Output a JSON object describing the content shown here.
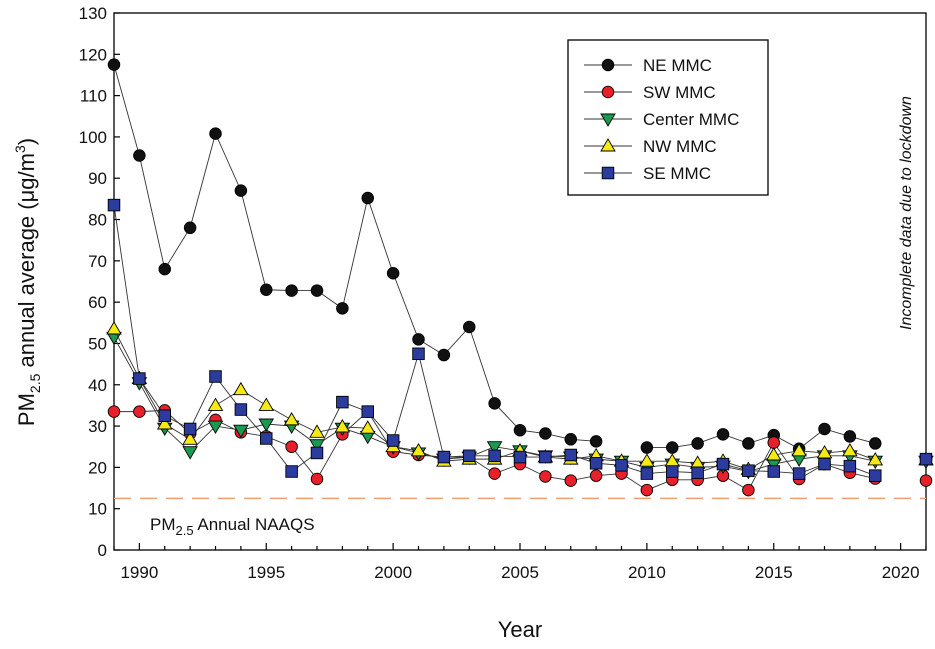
{
  "chart_data": {
    "type": "line",
    "title": "",
    "xlabel": "Year",
    "ylabel_prefix": "PM",
    "ylabel_sub": "2.5",
    "ylabel_mid": " annual average (μg/m",
    "ylabel_sup": "3",
    "ylabel_end": ")",
    "xlim": [
      1989,
      2021
    ],
    "ylim": [
      0,
      130
    ],
    "x_ticks": [
      1990,
      1995,
      2000,
      2005,
      2010,
      2015,
      2020
    ],
    "y_ticks": [
      0,
      10,
      20,
      30,
      40,
      50,
      60,
      70,
      80,
      90,
      100,
      110,
      120,
      130
    ],
    "legend_position": "top-right",
    "series": [
      {
        "name": "NE MMC",
        "marker": "circle",
        "color": "#111111",
        "points": [
          [
            1989,
            117.5
          ],
          [
            1990,
            95.5
          ],
          [
            1991,
            68
          ],
          [
            1992,
            78
          ],
          [
            1993,
            100.8
          ],
          [
            1994,
            87
          ],
          [
            1995,
            63
          ],
          [
            1996,
            62.8
          ],
          [
            1997,
            62.8
          ],
          [
            1998,
            58.5
          ],
          [
            1999,
            85.2
          ],
          [
            2000,
            67
          ],
          [
            2001,
            51
          ],
          [
            2002,
            47.2
          ],
          [
            2003,
            54
          ],
          [
            2004,
            35.5
          ],
          [
            2005,
            29
          ],
          [
            2006,
            28.2
          ],
          [
            2007,
            26.8
          ],
          [
            2008,
            26.3
          ],
          [
            2010,
            24.8
          ],
          [
            2011,
            24.8
          ],
          [
            2012,
            25.8
          ],
          [
            2013,
            28
          ],
          [
            2014,
            25.8
          ],
          [
            2015,
            27.8
          ],
          [
            2016,
            24.5
          ],
          [
            2017,
            29.3
          ],
          [
            2018,
            27.5
          ],
          [
            2019,
            25.8
          ],
          [
            2021,
            22
          ]
        ]
      },
      {
        "name": "SW MMC",
        "marker": "circle",
        "color": "#e8202a",
        "points": [
          [
            1989,
            33.5
          ],
          [
            1990,
            33.5
          ],
          [
            1991,
            33.8
          ],
          [
            1992,
            28.2
          ],
          [
            1993,
            31.5
          ],
          [
            1994,
            28.5
          ],
          [
            1995,
            27.5
          ],
          [
            1996,
            25
          ],
          [
            1997,
            17.2
          ],
          [
            1998,
            28
          ],
          [
            1999,
            33.5
          ],
          [
            2000,
            23.8
          ],
          [
            2001,
            23
          ],
          [
            2002,
            22.5
          ],
          [
            2003,
            22.5
          ],
          [
            2004,
            18.5
          ],
          [
            2005,
            20.8
          ],
          [
            2006,
            17.8
          ],
          [
            2007,
            16.8
          ],
          [
            2008,
            18
          ],
          [
            2009,
            18.5
          ],
          [
            2010,
            14.5
          ],
          [
            2011,
            17
          ],
          [
            2012,
            17
          ],
          [
            2013,
            18
          ],
          [
            2014,
            14.5
          ],
          [
            2015,
            26
          ],
          [
            2016,
            17.2
          ],
          [
            2017,
            20.8
          ],
          [
            2018,
            18.7
          ],
          [
            2019,
            17.3
          ],
          [
            2021,
            16.8
          ]
        ]
      },
      {
        "name": "Center MMC",
        "marker": "triangle-down",
        "color": "#1a9a50",
        "points": [
          [
            1989,
            51.5
          ],
          [
            1990,
            40.5
          ],
          [
            1991,
            29.5
          ],
          [
            1992,
            23.8
          ],
          [
            1993,
            30
          ],
          [
            1994,
            29
          ],
          [
            1995,
            30.5
          ],
          [
            1996,
            30
          ],
          [
            1997,
            25.5
          ],
          [
            1998,
            29.5
          ],
          [
            1999,
            27.5
          ],
          [
            2000,
            25
          ],
          [
            2001,
            23.5
          ],
          [
            2002,
            22
          ],
          [
            2003,
            22.5
          ],
          [
            2004,
            25
          ],
          [
            2005,
            24
          ],
          [
            2006,
            22.8
          ],
          [
            2007,
            22.5
          ],
          [
            2008,
            22
          ],
          [
            2009,
            21.5
          ],
          [
            2010,
            20
          ],
          [
            2011,
            20.8
          ],
          [
            2012,
            20
          ],
          [
            2013,
            20.3
          ],
          [
            2014,
            19
          ],
          [
            2015,
            20.8
          ],
          [
            2016,
            22
          ],
          [
            2017,
            22.8
          ],
          [
            2018,
            22.8
          ],
          [
            2019,
            21.5
          ],
          [
            2021,
            21.5
          ]
        ]
      },
      {
        "name": "NW MMC",
        "marker": "triangle-up",
        "color": "#f5ea14",
        "points": [
          [
            1989,
            53.5
          ],
          [
            1990,
            41.5
          ],
          [
            1991,
            30.5
          ],
          [
            1992,
            26.8
          ],
          [
            1993,
            35
          ],
          [
            1994,
            38.8
          ],
          [
            1995,
            35
          ],
          [
            1996,
            31.5
          ],
          [
            1997,
            28.5
          ],
          [
            1998,
            29.8
          ],
          [
            1999,
            29.5
          ],
          [
            2000,
            25
          ],
          [
            2001,
            24
          ],
          [
            2002,
            21.5
          ],
          [
            2003,
            22
          ],
          [
            2004,
            22
          ],
          [
            2005,
            24
          ],
          [
            2006,
            22.5
          ],
          [
            2007,
            22
          ],
          [
            2008,
            22.8
          ],
          [
            2009,
            21.5
          ],
          [
            2010,
            21.5
          ],
          [
            2011,
            21.5
          ],
          [
            2012,
            21
          ],
          [
            2013,
            21.5
          ],
          [
            2014,
            19.5
          ],
          [
            2015,
            23
          ],
          [
            2016,
            24
          ],
          [
            2017,
            23.5
          ],
          [
            2018,
            24
          ],
          [
            2019,
            21.8
          ],
          [
            2021,
            21.8
          ]
        ]
      },
      {
        "name": "SE MMC",
        "marker": "square",
        "color": "#2b3b9e",
        "points": [
          [
            1989,
            83.5
          ],
          [
            1990,
            41.5
          ],
          [
            1991,
            32.5
          ],
          [
            1992,
            29.3
          ],
          [
            1993,
            42
          ],
          [
            1994,
            34
          ],
          [
            1995,
            27
          ],
          [
            1996,
            19
          ],
          [
            1997,
            23.5
          ],
          [
            1998,
            35.8
          ],
          [
            1999,
            33.5
          ],
          [
            2000,
            26.5
          ],
          [
            2001,
            47.5
          ],
          [
            2002,
            22.5
          ],
          [
            2003,
            22.8
          ],
          [
            2004,
            22.8
          ],
          [
            2005,
            22.5
          ],
          [
            2006,
            22.5
          ],
          [
            2007,
            23
          ],
          [
            2008,
            21
          ],
          [
            2009,
            20.5
          ],
          [
            2010,
            18.5
          ],
          [
            2011,
            19
          ],
          [
            2012,
            18.7
          ],
          [
            2013,
            20.8
          ],
          [
            2014,
            19.2
          ],
          [
            2015,
            19
          ],
          [
            2016,
            18.5
          ],
          [
            2017,
            20.8
          ],
          [
            2018,
            20.3
          ],
          [
            2019,
            18
          ],
          [
            2021,
            22
          ]
        ]
      }
    ],
    "reference_line": {
      "value": 12.5,
      "label_prefix": "PM",
      "label_sub": "2.5",
      "label_rest": " Annual NAAQS",
      "color": "#f0a070"
    },
    "annotation": "Incomplete data due to lockdown"
  }
}
